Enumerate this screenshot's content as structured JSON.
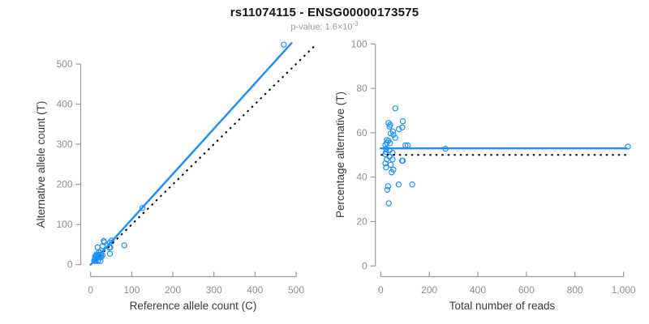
{
  "header": {
    "title": "rs11074115 - ENSG00000173575",
    "subtitle_prefix": "p-value: 1.6×10",
    "subtitle_exponent": "-3"
  },
  "colors": {
    "accent_blue": "#1E90FF",
    "dotted_black": "#000000",
    "axis_gray": "#9a9a9a",
    "tick_label_gray": "#8e8e8e",
    "axis_title_color": "#3a3a3a",
    "title_color": "#151515",
    "subtitle_gray": "#9b9b9b"
  },
  "chart_data": [
    {
      "type": "scatter",
      "xlabel": "Reference allele count (C)",
      "ylabel": "Alternative allele count (T)",
      "xlim": [
        0,
        545
      ],
      "ylim": [
        0,
        557
      ],
      "xticks": [
        0,
        100,
        200,
        300,
        400,
        500
      ],
      "xtick_labels": [
        "0",
        "100",
        "200",
        "300",
        "400",
        "500"
      ],
      "yticks": [
        0,
        100,
        200,
        300,
        400,
        500
      ],
      "ytick_labels": [
        "0",
        "100",
        "200",
        "300",
        "400",
        "500"
      ],
      "grid": false,
      "points": [
        [
          17,
          43
        ],
        [
          32,
          59
        ],
        [
          11,
          21
        ],
        [
          14,
          25
        ],
        [
          13,
          23
        ],
        [
          33,
          56
        ],
        [
          29,
          46
        ],
        [
          20,
          30
        ],
        [
          17,
          24
        ],
        [
          21,
          31
        ],
        [
          25,
          35
        ],
        [
          11,
          14
        ],
        [
          14,
          18
        ],
        [
          11,
          14
        ],
        [
          17,
          21
        ],
        [
          9,
          10
        ],
        [
          47,
          55
        ],
        [
          51,
          60
        ],
        [
          126,
          141
        ],
        [
          470,
          548
        ],
        [
          10,
          12
        ],
        [
          17,
          19
        ],
        [
          11,
          11
        ],
        [
          24,
          25
        ],
        [
          9,
          10
        ],
        [
          18,
          18
        ],
        [
          13,
          12
        ],
        [
          25,
          24
        ],
        [
          48,
          43
        ],
        [
          46,
          42
        ],
        [
          10,
          9
        ],
        [
          22,
          19
        ],
        [
          12,
          10
        ],
        [
          29,
          23
        ],
        [
          26,
          19
        ],
        [
          47,
          27
        ],
        [
          82,
          48
        ],
        [
          19,
          11
        ],
        [
          18,
          9
        ],
        [
          24,
          9
        ]
      ],
      "fit_line": {
        "x1": 0,
        "y1": 0,
        "x2": 489,
        "y2": 552,
        "style": "solid"
      },
      "reference_line": {
        "x1": 0,
        "y1": 0,
        "x2": 545,
        "y2": 545,
        "style": "dotted"
      }
    },
    {
      "type": "scatter",
      "xlabel": "Total number of reads",
      "ylabel": "Percentage alternative (T)",
      "xlim": [
        0,
        1020
      ],
      "ylim": [
        0,
        100
      ],
      "xticks": [
        0,
        200,
        400,
        600,
        800,
        1000
      ],
      "xtick_labels": [
        "0",
        "200",
        "400",
        "600",
        "800",
        "1,000"
      ],
      "yticks": [
        0,
        20,
        40,
        60,
        80,
        100
      ],
      "ytick_labels": [
        "0",
        "20",
        "40",
        "60",
        "80",
        "100"
      ],
      "grid": false,
      "points": [
        [
          60,
          71
        ],
        [
          91,
          65.2
        ],
        [
          32,
          64.4
        ],
        [
          39,
          63.6
        ],
        [
          36,
          62.8
        ],
        [
          89,
          62.4
        ],
        [
          75,
          61.6
        ],
        [
          50,
          60.6
        ],
        [
          41,
          59.7
        ],
        [
          52,
          59.1
        ],
        [
          60,
          57.7
        ],
        [
          25,
          56.7
        ],
        [
          32,
          56.4
        ],
        [
          25,
          55.5
        ],
        [
          38,
          55.3
        ],
        [
          19,
          54.5
        ],
        [
          102,
          54.3
        ],
        [
          111,
          54.3
        ],
        [
          267,
          52.8
        ],
        [
          1018,
          53.8
        ],
        [
          22,
          52.8
        ],
        [
          36,
          52.2
        ],
        [
          22,
          51.3
        ],
        [
          49,
          51
        ],
        [
          19,
          50.3
        ],
        [
          36,
          49.2
        ],
        [
          25,
          48
        ],
        [
          49,
          48
        ],
        [
          91,
          47.4
        ],
        [
          88,
          47.4
        ],
        [
          19,
          46.2
        ],
        [
          41,
          45.6
        ],
        [
          22,
          44.4
        ],
        [
          52,
          43.4
        ],
        [
          45,
          42.2
        ],
        [
          74,
          36.7
        ],
        [
          130,
          36.7
        ],
        [
          30,
          35.9
        ],
        [
          27,
          34.3
        ],
        [
          33,
          28.2
        ]
      ],
      "fit_line": {
        "x1": 0,
        "y1": 53,
        "x2": 1013,
        "y2": 53,
        "style": "solid"
      },
      "reference_line": {
        "x1": 0,
        "y1": 50,
        "x2": 1013,
        "y2": 50,
        "style": "dotted"
      }
    }
  ]
}
